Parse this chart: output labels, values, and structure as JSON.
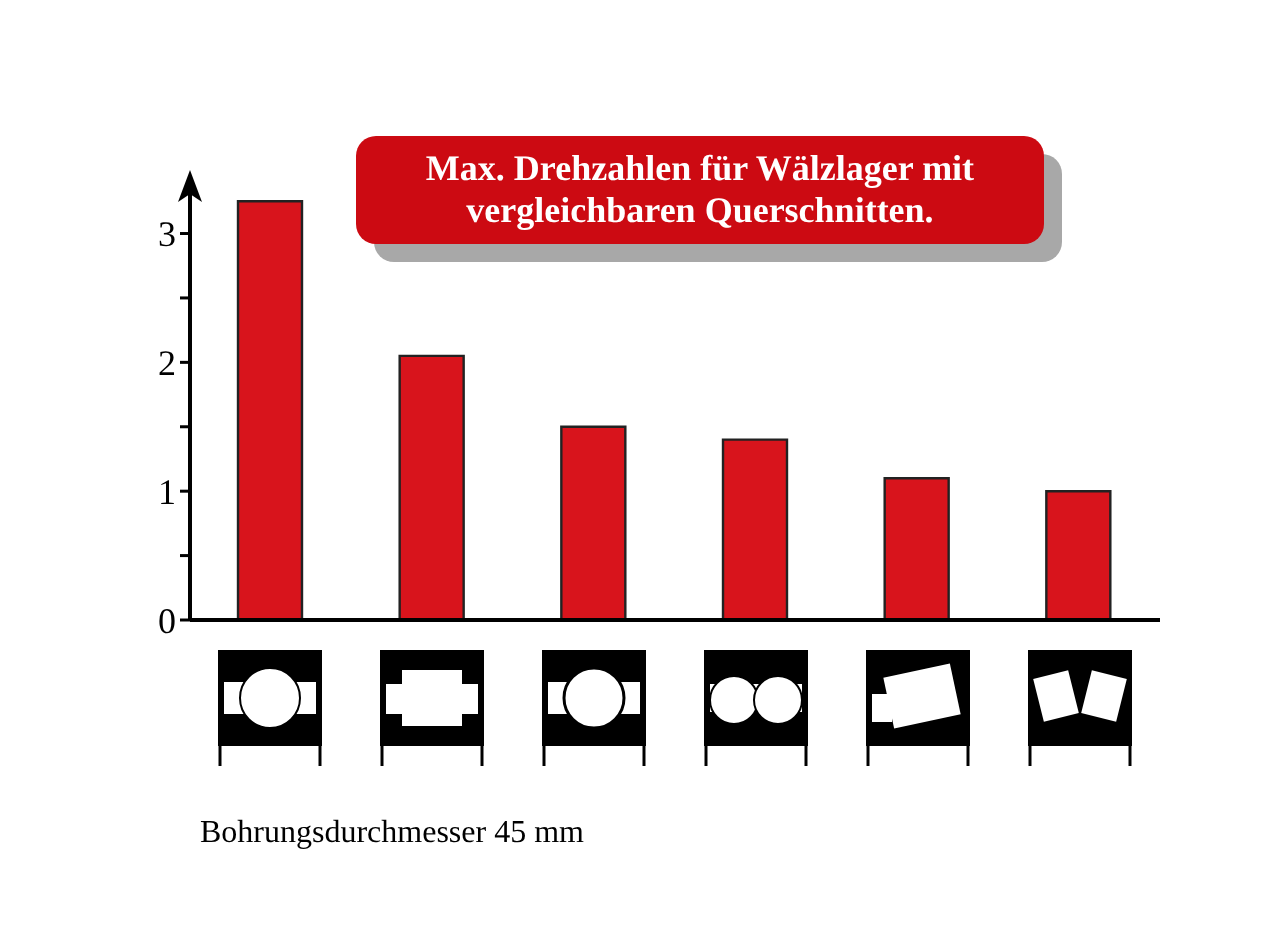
{
  "chart_data": {
    "type": "bar",
    "title": "Max. Drehzahlen für Wälzlager mit vergleichbaren Querschnitten.",
    "categories": [
      null,
      null,
      null,
      null,
      null,
      null
    ],
    "values": [
      3.25,
      2.05,
      1.5,
      1.4,
      1.1,
      1.0
    ],
    "color": "#d8141c",
    "ylim": [
      0,
      3.4
    ],
    "yticks": [
      0,
      {
        "value": 0.5,
        "label": null
      },
      1,
      {
        "value": 1.5,
        "label": null
      },
      2,
      {
        "value": 2.5,
        "label": null
      },
      3
    ],
    "annotations": [
      "Bohrungsdurchmesser 45 mm"
    ]
  }
}
